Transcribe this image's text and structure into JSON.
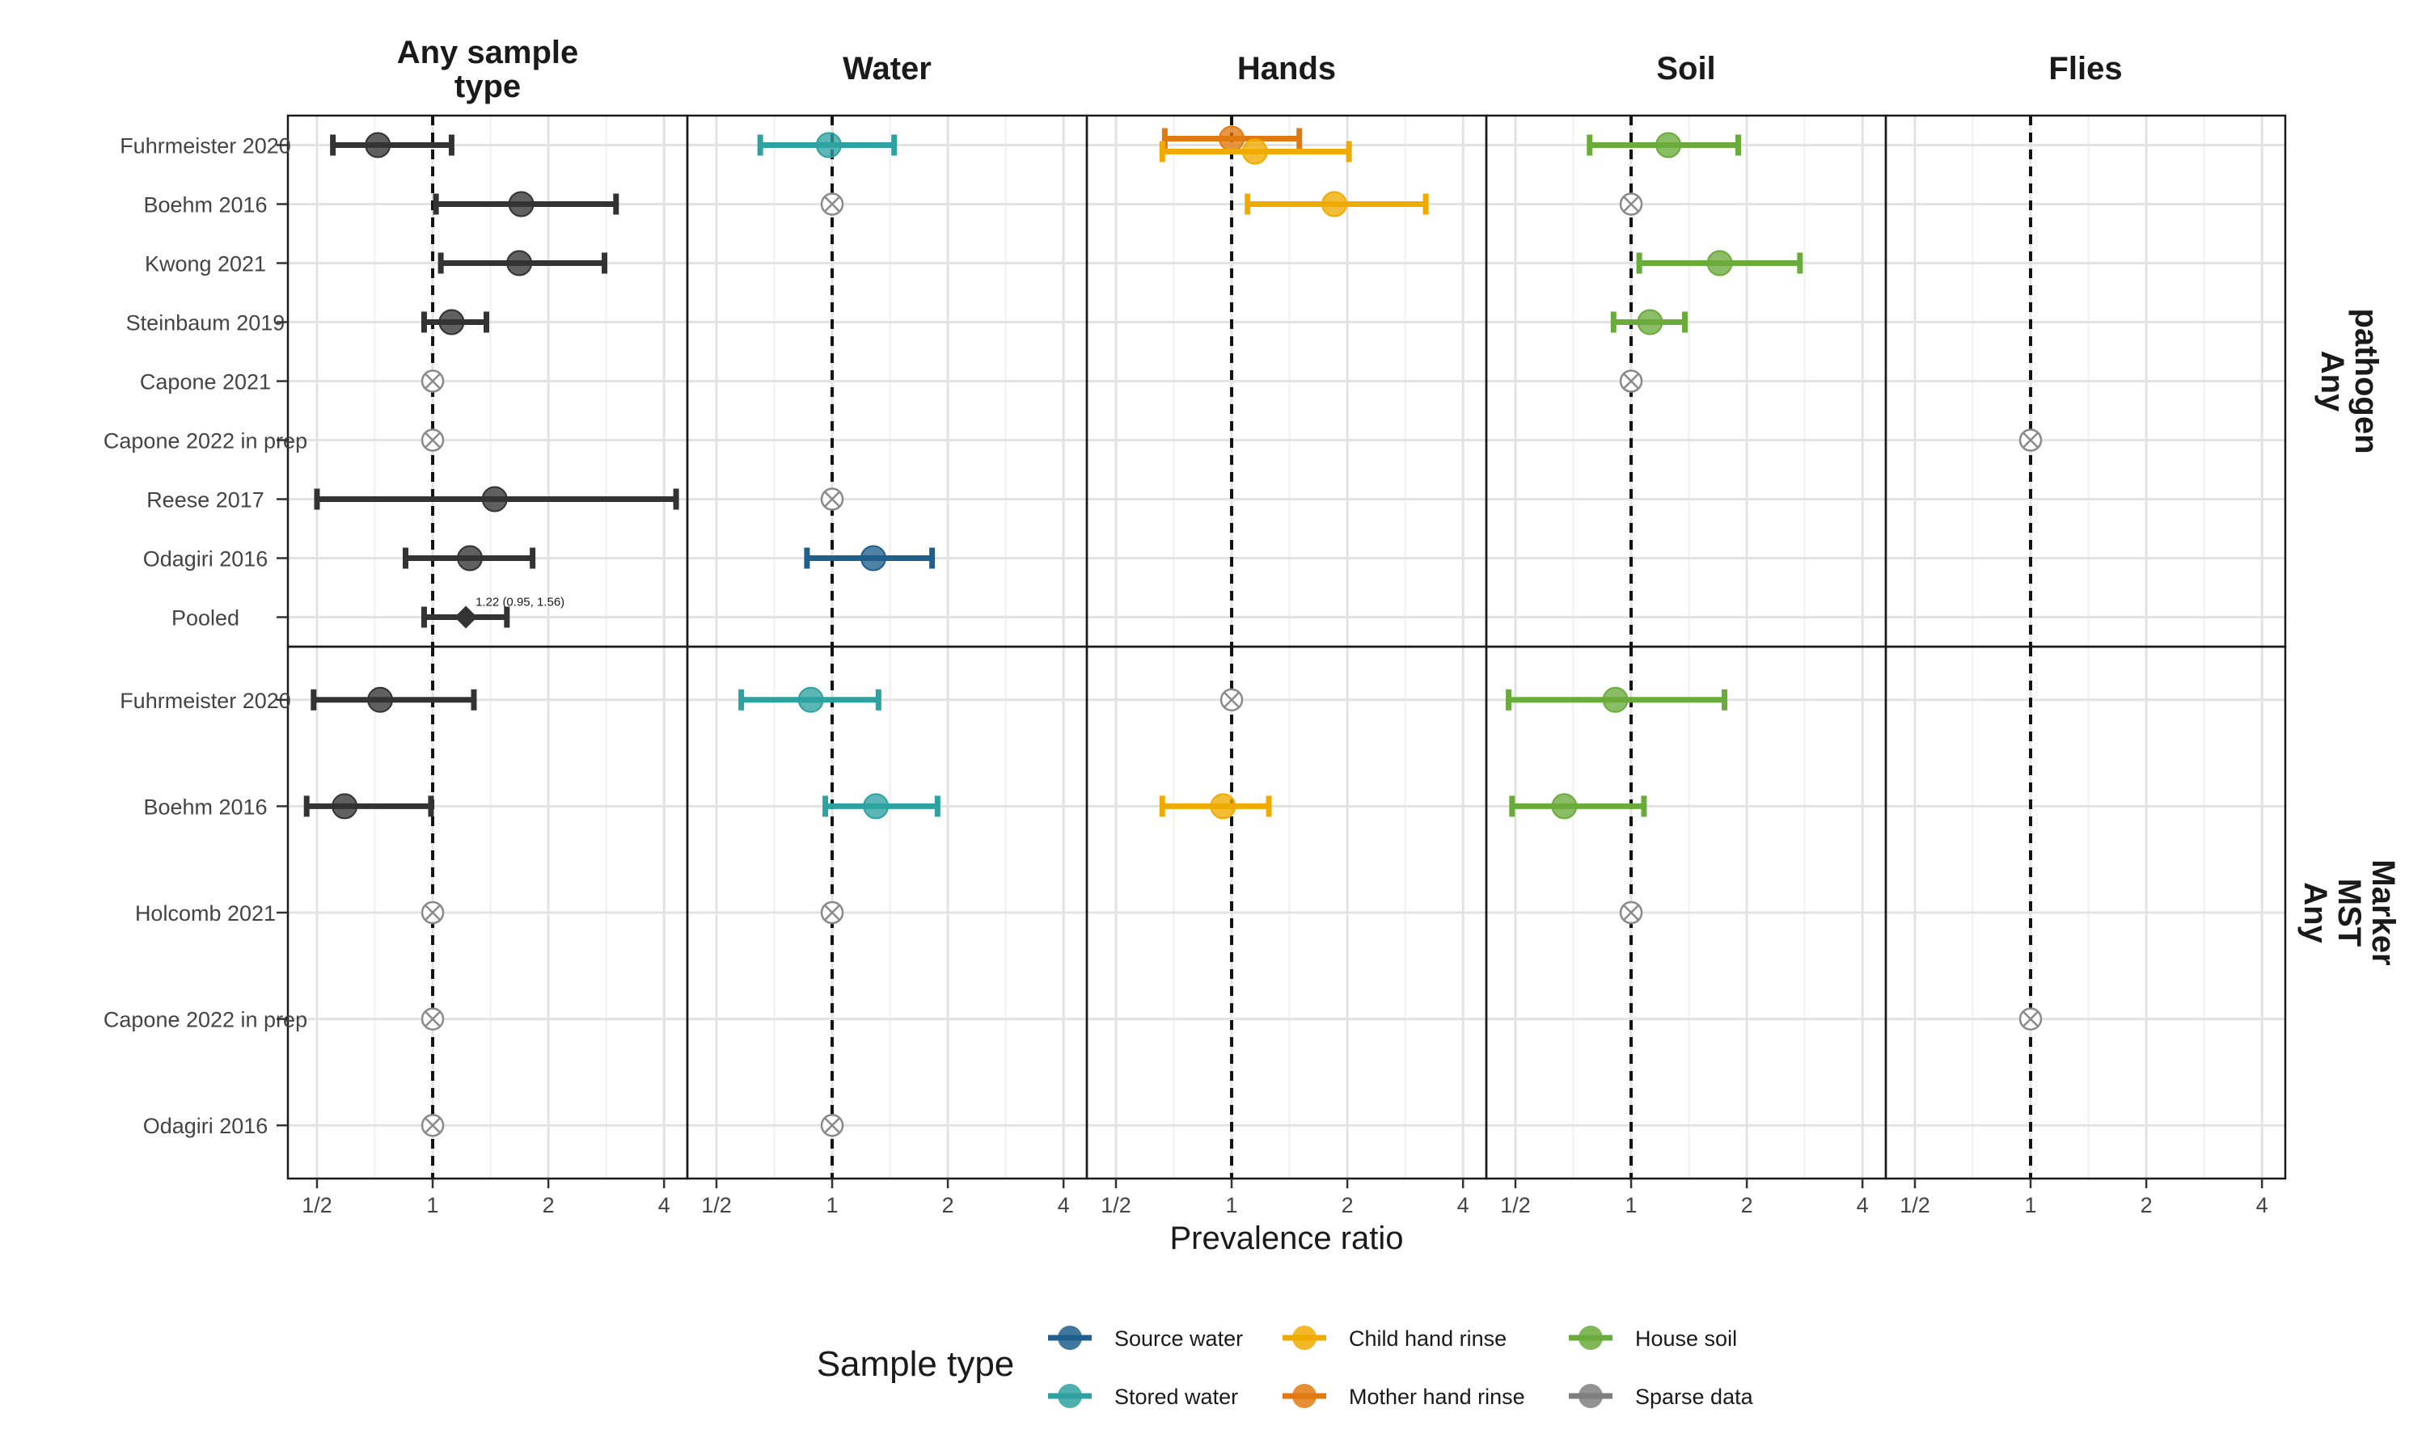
{
  "chart_data": {
    "type": "forest",
    "x_label": "Prevalence ratio",
    "x_scale": "log2",
    "xlim": [
      0.42,
      4.6
    ],
    "x_ticks": [
      {
        "value": 0.5,
        "label": "1/2"
      },
      {
        "value": 1,
        "label": "1"
      },
      {
        "value": 2,
        "label": "2"
      },
      {
        "value": 4,
        "label": "4"
      }
    ],
    "reference_line": 1,
    "grid": true,
    "column_facets": [
      "Any sample\ntype",
      "Water",
      "Hands",
      "Soil",
      "Flies"
    ],
    "row_facets": [
      {
        "label": "Any\npathogen",
        "studies": [
          "Fuhrmeister 2020",
          "Boehm 2016",
          "Kwong 2021",
          "Steinbaum 2019",
          "Capone 2021",
          "Capone 2022 in prep",
          "Reese 2017",
          "Odagiri 2016",
          "Pooled"
        ],
        "estimates": [
          {
            "col": 0,
            "study": 0,
            "type": "Overall",
            "pr": 0.72,
            "lo": 0.55,
            "hi": 1.12
          },
          {
            "col": 0,
            "study": 1,
            "type": "Overall",
            "pr": 1.7,
            "lo": 1.02,
            "hi": 3.0
          },
          {
            "col": 0,
            "study": 2,
            "type": "Overall",
            "pr": 1.68,
            "lo": 1.05,
            "hi": 2.8
          },
          {
            "col": 0,
            "study": 3,
            "type": "Overall",
            "pr": 1.12,
            "lo": 0.95,
            "hi": 1.38
          },
          {
            "col": 0,
            "study": 4,
            "type": "Sparse data",
            "pr": 1.0
          },
          {
            "col": 0,
            "study": 5,
            "type": "Sparse data",
            "pr": 1.0
          },
          {
            "col": 0,
            "study": 6,
            "type": "Overall",
            "pr": 1.45,
            "lo": 0.5,
            "hi": 4.3
          },
          {
            "col": 0,
            "study": 7,
            "type": "Overall",
            "pr": 1.25,
            "lo": 0.85,
            "hi": 1.82
          },
          {
            "col": 0,
            "study": 8,
            "type": "Pooled",
            "pr": 1.22,
            "lo": 0.95,
            "hi": 1.56,
            "label": "1.22 (0.95, 1.56)"
          },
          {
            "col": 1,
            "study": 0,
            "type": "Stored water",
            "pr": 0.98,
            "lo": 0.65,
            "hi": 1.45
          },
          {
            "col": 1,
            "study": 1,
            "type": "Sparse data",
            "pr": 1.0
          },
          {
            "col": 1,
            "study": 6,
            "type": "Sparse data",
            "pr": 1.0
          },
          {
            "col": 1,
            "study": 7,
            "type": "Source water",
            "pr": 1.28,
            "lo": 0.86,
            "hi": 1.82
          },
          {
            "col": 2,
            "study": 0,
            "type": "Mother hand rinse",
            "pr": 1.0,
            "lo": 0.67,
            "hi": 1.5,
            "dodge": -1
          },
          {
            "col": 2,
            "study": 0,
            "type": "Child hand rinse",
            "pr": 1.15,
            "lo": 0.66,
            "hi": 2.02,
            "dodge": 1
          },
          {
            "col": 2,
            "study": 1,
            "type": "Child hand rinse",
            "pr": 1.85,
            "lo": 1.1,
            "hi": 3.2
          },
          {
            "col": 3,
            "study": 0,
            "type": "House soil",
            "pr": 1.25,
            "lo": 0.78,
            "hi": 1.9
          },
          {
            "col": 3,
            "study": 1,
            "type": "Sparse data",
            "pr": 1.0
          },
          {
            "col": 3,
            "study": 2,
            "type": "House soil",
            "pr": 1.7,
            "lo": 1.05,
            "hi": 2.75
          },
          {
            "col": 3,
            "study": 3,
            "type": "House soil",
            "pr": 1.12,
            "lo": 0.9,
            "hi": 1.38
          },
          {
            "col": 3,
            "study": 4,
            "type": "Sparse data",
            "pr": 1.0
          },
          {
            "col": 4,
            "study": 5,
            "type": "Sparse data",
            "pr": 1.0
          }
        ]
      },
      {
        "label": "Any\nMST\nMarker",
        "studies": [
          "Fuhrmeister 2020",
          "Boehm 2016",
          "Holcomb 2021",
          "Capone 2022 in prep",
          "Odagiri 2016"
        ],
        "estimates": [
          {
            "col": 0,
            "study": 0,
            "type": "Overall",
            "pr": 0.73,
            "lo": 0.49,
            "hi": 1.28
          },
          {
            "col": 0,
            "study": 1,
            "type": "Overall",
            "pr": 0.59,
            "lo": 0.47,
            "hi": 0.99
          },
          {
            "col": 0,
            "study": 2,
            "type": "Sparse data",
            "pr": 1.0
          },
          {
            "col": 0,
            "study": 3,
            "type": "Sparse data",
            "pr": 1.0
          },
          {
            "col": 0,
            "study": 4,
            "type": "Sparse data",
            "pr": 1.0
          },
          {
            "col": 1,
            "study": 0,
            "type": "Stored water",
            "pr": 0.88,
            "lo": 0.58,
            "hi": 1.32
          },
          {
            "col": 1,
            "study": 1,
            "type": "Stored water",
            "pr": 1.3,
            "lo": 0.96,
            "hi": 1.88
          },
          {
            "col": 1,
            "study": 2,
            "type": "Sparse data",
            "pr": 1.0
          },
          {
            "col": 1,
            "study": 4,
            "type": "Sparse data",
            "pr": 1.0
          },
          {
            "col": 2,
            "study": 0,
            "type": "Sparse data",
            "pr": 1.0
          },
          {
            "col": 2,
            "study": 1,
            "type": "Child hand rinse",
            "pr": 0.95,
            "lo": 0.66,
            "hi": 1.25
          },
          {
            "col": 3,
            "study": 0,
            "type": "House soil",
            "pr": 0.91,
            "lo": 0.48,
            "hi": 1.75
          },
          {
            "col": 3,
            "study": 1,
            "type": "House soil",
            "pr": 0.67,
            "lo": 0.49,
            "hi": 1.08
          },
          {
            "col": 3,
            "study": 2,
            "type": "Sparse data",
            "pr": 1.0
          },
          {
            "col": 4,
            "study": 3,
            "type": "Sparse data",
            "pr": 1.0
          }
        ]
      }
    ],
    "legend": {
      "title": "Sample type",
      "placement": "bottom",
      "entries": [
        {
          "name": "Source water",
          "color": "#1f5f8b"
        },
        {
          "name": "Stored water",
          "color": "#2ea2a0"
        },
        {
          "name": "Child hand rinse",
          "color": "#f0ab00"
        },
        {
          "name": "Mother hand rinse",
          "color": "#e07a10"
        },
        {
          "name": "House soil",
          "color": "#6aab3c"
        },
        {
          "name": "Sparse data",
          "color": "#7f7f7f"
        }
      ]
    },
    "colors": {
      "Overall": "#333333",
      "Pooled": "#333333",
      "Source water": "#1f5f8b",
      "Stored water": "#2ea2a0",
      "Child hand rinse": "#f0ab00",
      "Mother hand rinse": "#e07a10",
      "House soil": "#6aab3c",
      "Sparse data": "#7f7f7f"
    }
  }
}
